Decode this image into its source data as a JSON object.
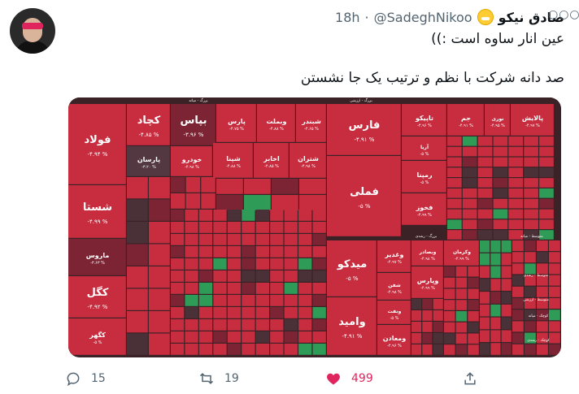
{
  "tweet": {
    "display_name": "صادق نیکو",
    "handle": "@SadeghNikoo",
    "separator": "·",
    "time": "18h",
    "more_label": "○○○",
    "lines": [
      "عین انار ساوه است :))",
      "صد دانه شرکت با نظم و ترتیب یک جا نشستن"
    ]
  },
  "media": {
    "section_labels": [
      "بزرگ - میانه",
      "بزرگ - ارزشی",
      "بزرگ - رشدی",
      "متوسط - میانه",
      "متوسط - رشدی",
      "متوسط - ارزشی",
      "کوچک - میانه",
      "کوچک - رشدی"
    ],
    "tiles": [
      {
        "name": "فولاد",
        "pct": "-۴.۹۴ %"
      },
      {
        "name": "شستا",
        "pct": "-۴.۹۹ %"
      },
      {
        "name": "ماروس",
        "pct": "-۳.۶۳ %"
      },
      {
        "name": "کگل",
        "pct": "-۴.۹۲ %"
      },
      {
        "name": "کگهر",
        "pct": "-۵ %"
      },
      {
        "name": "کچاد",
        "pct": "-۴.۸۵ %"
      },
      {
        "name": "پارس",
        "pct": "-۴.۷۵ %"
      },
      {
        "name": "وبملت",
        "pct": "-۴.۸۸ %"
      },
      {
        "name": "شبندر",
        "pct": "-۴.۶۵ %"
      },
      {
        "name": "بپاس",
        "pct": "-۳.۹۶ %"
      },
      {
        "name": "پارسان",
        "pct": "-۳.۲۰ %"
      },
      {
        "name": "خودرو",
        "pct": "-۴.۹۸ %"
      },
      {
        "name": "شپنا",
        "pct": "-۴.۸۸ %"
      },
      {
        "name": "اخابر",
        "pct": "-۴.۸۵ %"
      },
      {
        "name": "شتران",
        "pct": "-۴.۹۸ %"
      },
      {
        "name": "فارس",
        "pct": "-۴.۹۱ %"
      },
      {
        "name": "فملی",
        "pct": "-۵ %"
      },
      {
        "name": "تاپیکو",
        "pct": "-۴.۹۶ %"
      },
      {
        "name": "جم",
        "pct": "-۴.۹۱ %"
      },
      {
        "name": "نوری",
        "pct": "-۴.۹۵ %"
      },
      {
        "name": "پالایش",
        "pct": "-۴.۹۷ %"
      },
      {
        "name": "آریا",
        "pct": "-۵ %"
      },
      {
        "name": "رمپنا",
        "pct": "-۵ %"
      },
      {
        "name": "فخوز",
        "pct": "-۴.۹۹ %"
      },
      {
        "name": "میدکو",
        "pct": "-۵ %"
      },
      {
        "name": "وامید",
        "pct": "-۴.۹۱ %"
      },
      {
        "name": "وغدیر",
        "pct": "-۴.۹۷ %"
      },
      {
        "name": "وبصادر",
        "pct": "-۴.۹۸ %"
      },
      {
        "name": "وکرمان",
        "pct": "-۴.۹۹ %"
      },
      {
        "name": "شفن",
        "pct": "-۴.۹۸ %"
      },
      {
        "name": "ونفت",
        "pct": "-۵ %"
      },
      {
        "name": "ومعادن",
        "pct": "-۴.۹۶ %"
      },
      {
        "name": "وپارس",
        "pct": "-۴.۹۹ %"
      }
    ]
  },
  "actions": {
    "reply_count": "15",
    "retweet_count": "19",
    "like_count": "499"
  },
  "colors": {
    "tile_red": "#c82c3f",
    "tile_dark": "#7c2434",
    "tile_gray": "#533842",
    "tile_green": "#2e9b57",
    "like": "#e0245e",
    "muted": "#536471"
  }
}
